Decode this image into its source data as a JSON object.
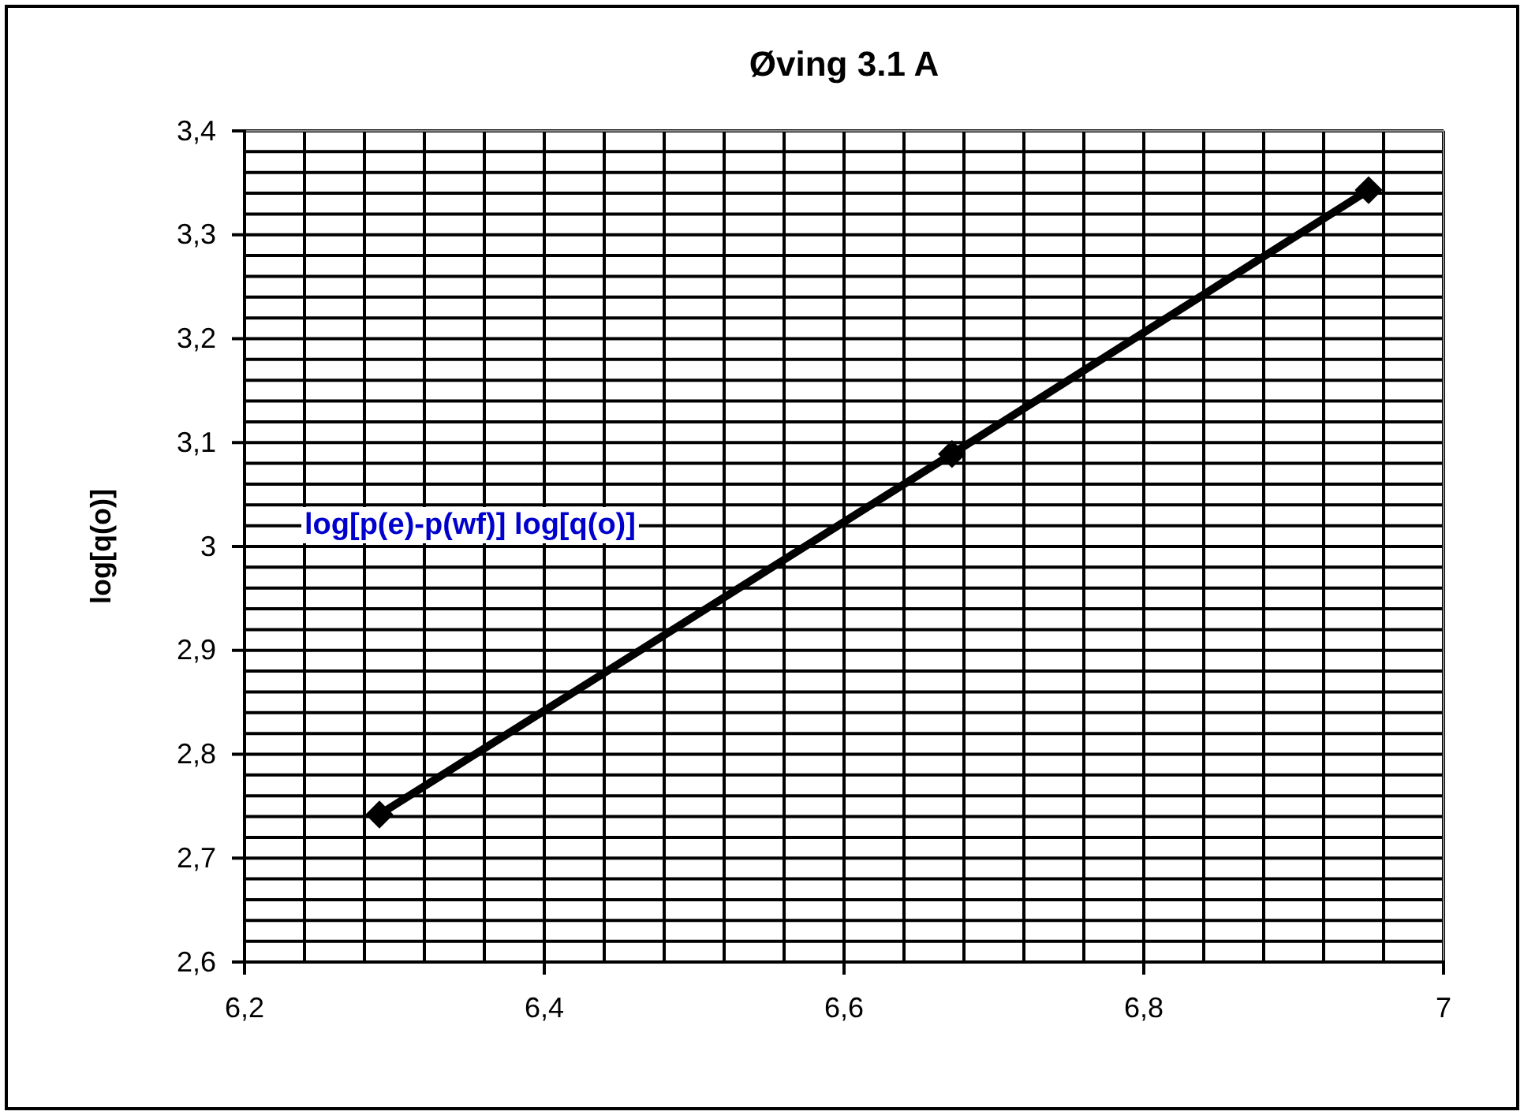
{
  "chart_data": {
    "type": "line",
    "title": "Øving 3.1 A",
    "ylabel": "log[q(o)]",
    "annotations": [
      {
        "text": "log[p(e)-p(wf)] log[q(o)]"
      }
    ],
    "x": [
      6.29,
      6.672,
      6.95
    ],
    "series": [
      {
        "color": "#000000",
        "values": [
          2.742,
          3.089,
          3.343
        ]
      }
    ],
    "marker": "diamond",
    "line_style": "solid",
    "grid": true,
    "xlim": [
      6.2,
      7
    ],
    "ylim": [
      2.6,
      3.4
    ],
    "xticks": [
      {
        "value": 6.2,
        "label": "6,2"
      },
      {
        "value": 6.24,
        "label": null
      },
      {
        "value": 6.28,
        "label": null
      },
      {
        "value": 6.32,
        "label": null
      },
      {
        "value": 6.36,
        "label": null
      },
      {
        "value": 6.4,
        "label": "6,4"
      },
      {
        "value": 6.44,
        "label": null
      },
      {
        "value": 6.48,
        "label": null
      },
      {
        "value": 6.52,
        "label": null
      },
      {
        "value": 6.56,
        "label": null
      },
      {
        "value": 6.6,
        "label": "6,6"
      },
      {
        "value": 6.64,
        "label": null
      },
      {
        "value": 6.68,
        "label": null
      },
      {
        "value": 6.72,
        "label": null
      },
      {
        "value": 6.76,
        "label": null
      },
      {
        "value": 6.8,
        "label": "6,8"
      },
      {
        "value": 6.84,
        "label": null
      },
      {
        "value": 6.88,
        "label": null
      },
      {
        "value": 6.92,
        "label": null
      },
      {
        "value": 6.96,
        "label": null
      },
      7
    ],
    "yticks": [
      {
        "value": 2.6,
        "label": "2,6"
      },
      {
        "value": 2.62,
        "label": null
      },
      {
        "value": 2.64,
        "label": null
      },
      {
        "value": 2.66,
        "label": null
      },
      {
        "value": 2.68,
        "label": null
      },
      {
        "value": 2.7,
        "label": "2,7"
      },
      {
        "value": 2.72,
        "label": null
      },
      {
        "value": 2.74,
        "label": null
      },
      {
        "value": 2.76,
        "label": null
      },
      {
        "value": 2.78,
        "label": null
      },
      {
        "value": 2.8,
        "label": "2,8"
      },
      {
        "value": 2.82,
        "label": null
      },
      {
        "value": 2.84,
        "label": null
      },
      {
        "value": 2.86,
        "label": null
      },
      {
        "value": 2.88,
        "label": null
      },
      {
        "value": 2.9,
        "label": "2,9"
      },
      {
        "value": 2.92,
        "label": null
      },
      {
        "value": 2.94,
        "label": null
      },
      {
        "value": 2.96,
        "label": null
      },
      {
        "value": 2.98,
        "label": null
      },
      3,
      {
        "value": 3.02,
        "label": null
      },
      {
        "value": 3.04,
        "label": null
      },
      {
        "value": 3.06,
        "label": null
      },
      {
        "value": 3.08,
        "label": null
      },
      {
        "value": 3.1,
        "label": "3,1"
      },
      {
        "value": 3.12,
        "label": null
      },
      {
        "value": 3.14,
        "label": null
      },
      {
        "value": 3.16,
        "label": null
      },
      {
        "value": 3.18,
        "label": null
      },
      {
        "value": 3.2,
        "label": "3,2"
      },
      {
        "value": 3.22,
        "label": null
      },
      {
        "value": 3.24,
        "label": null
      },
      {
        "value": 3.26,
        "label": null
      },
      {
        "value": 3.28,
        "label": null
      },
      {
        "value": 3.3,
        "label": "3,3"
      },
      {
        "value": 3.32,
        "label": null
      },
      {
        "value": 3.34,
        "label": null
      },
      {
        "value": 3.36,
        "label": null
      },
      {
        "value": 3.38,
        "label": null
      },
      {
        "value": 3.4,
        "label": "3,4"
      }
    ]
  }
}
